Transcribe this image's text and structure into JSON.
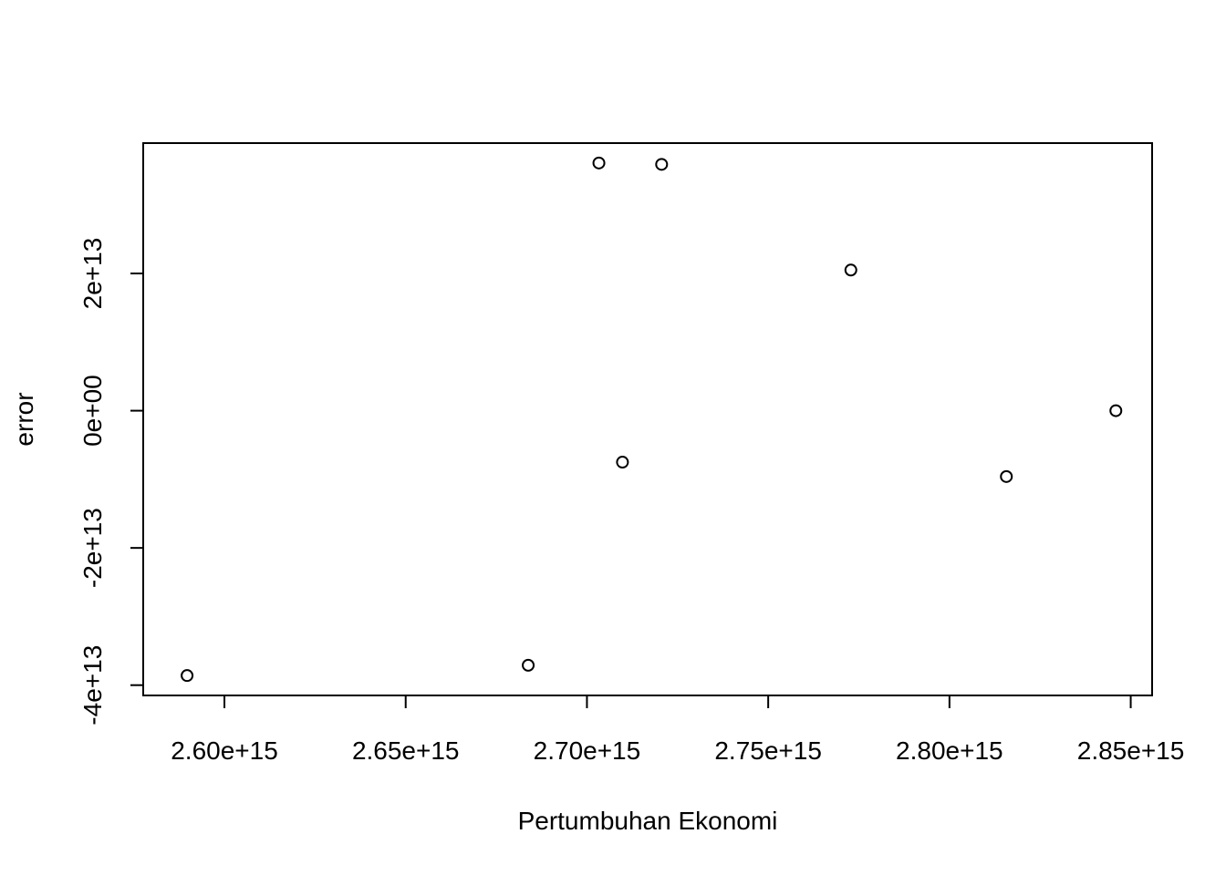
{
  "chart_data": {
    "type": "scatter",
    "title": "",
    "xlabel": "Pertumbuhan Ekonomi",
    "ylabel": "error",
    "xlim": [
      2577600000000000.0,
      2855900000000000.0
    ],
    "ylim": [
      -41500000000000.0,
      39000000000000.0
    ],
    "x_ticks": [
      2600000000000000.0,
      2650000000000000.0,
      2700000000000000.0,
      2750000000000000.0,
      2800000000000000.0,
      2850000000000000.0
    ],
    "x_tick_labels": [
      "2.60e+15",
      "2.65e+15",
      "2.70e+15",
      "2.75e+15",
      "2.80e+15",
      "2.85e+15"
    ],
    "y_ticks": [
      -40000000000000.0,
      -20000000000000.0,
      0,
      20000000000000.0
    ],
    "y_tick_labels": [
      "-4e+13",
      "-2e+13",
      "0e+00",
      "2e+13"
    ],
    "grid": false,
    "legend": "none",
    "marker": "open-circle",
    "color": "#000000",
    "points": [
      {
        "x": 2589700000000000.0,
        "y": -38600000000000.0
      },
      {
        "x": 2683800000000000.0,
        "y": -37100000000000.0
      },
      {
        "x": 2703300000000000.0,
        "y": 36100000000000.0
      },
      {
        "x": 2709800000000000.0,
        "y": -7500000000000.0
      },
      {
        "x": 2720600000000000.0,
        "y": 35900000000000.0
      },
      {
        "x": 2772800000000000.0,
        "y": 20500000000000.0
      },
      {
        "x": 2815700000000000.0,
        "y": -9600000000000.0
      },
      {
        "x": 2845900000000000.0,
        "y": 0
      }
    ]
  }
}
